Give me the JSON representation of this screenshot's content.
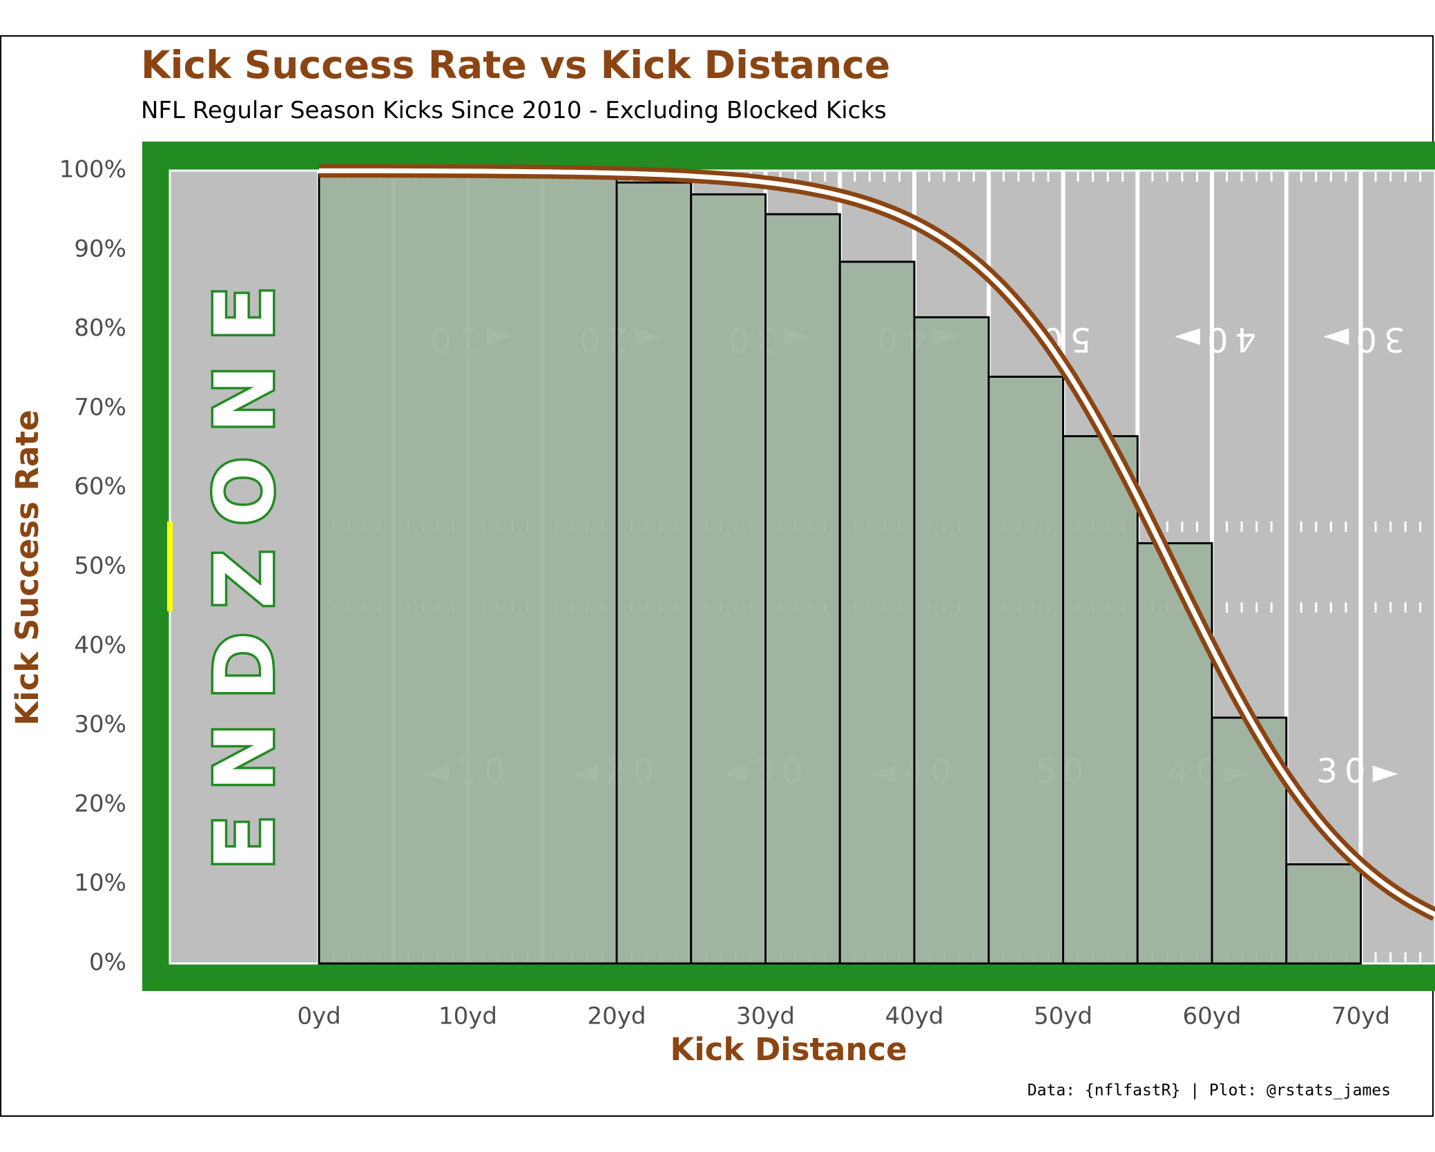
{
  "chart_data": {
    "type": "bar",
    "title": "Kick Success Rate vs Kick Distance",
    "subtitle": "NFL Regular Season Kicks Since 2010 - Excluding Blocked Kicks",
    "xlabel": "Kick Distance",
    "ylabel": "Kick Success Rate",
    "caption": "Data: {nflfastR} | Plot: @rstats_james",
    "x_ticks": [
      "0yd",
      "10yd",
      "20yd",
      "30yd",
      "40yd",
      "50yd",
      "60yd",
      "70yd"
    ],
    "x_tick_values": [
      0,
      10,
      20,
      30,
      40,
      50,
      60,
      70
    ],
    "y_ticks": [
      "0%",
      "10%",
      "20%",
      "30%",
      "40%",
      "50%",
      "60%",
      "70%",
      "80%",
      "90%",
      "100%"
    ],
    "y_tick_values": [
      0,
      0.1,
      0.2,
      0.3,
      0.4,
      0.5,
      0.6,
      0.7,
      0.8,
      0.9,
      1.0
    ],
    "xlim": [
      -10,
      75
    ],
    "ylim": [
      0,
      1
    ],
    "bins": [
      {
        "start": 0,
        "end": 20,
        "value": 0.995
      },
      {
        "start": 20,
        "end": 25,
        "value": 0.985
      },
      {
        "start": 25,
        "end": 30,
        "value": 0.97
      },
      {
        "start": 30,
        "end": 35,
        "value": 0.945
      },
      {
        "start": 35,
        "end": 40,
        "value": 0.885
      },
      {
        "start": 40,
        "end": 45,
        "value": 0.815
      },
      {
        "start": 45,
        "end": 50,
        "value": 0.74
      },
      {
        "start": 50,
        "end": 55,
        "value": 0.665
      },
      {
        "start": 55,
        "end": 60,
        "value": 0.53
      },
      {
        "start": 60,
        "end": 65,
        "value": 0.31
      },
      {
        "start": 65,
        "end": 70,
        "value": 0.125
      }
    ],
    "fit_curve": {
      "type": "logistic",
      "midpoint": 57.3,
      "scale": 6.5,
      "max": 1.0
    },
    "field": {
      "endzone_text": "ENDZONE",
      "top_numbers": [
        "◄10",
        "◄20",
        "◄30",
        "◄40",
        "50",
        "40►",
        "30►"
      ],
      "bottom_numbers": [
        "◄10",
        "◄20",
        "◄30",
        "◄40",
        "50",
        "40►",
        "30►"
      ]
    },
    "colors": {
      "title": "#8B4513",
      "border_green": "#228B22",
      "field_gray": "#BEBEBE",
      "bar_fill": "#9DB39E",
      "curve_outer": "#8B4513",
      "curve_inner": "#FFFFFF",
      "yardline_marker": "#FFFF00"
    },
    "grid": false,
    "legend": "none"
  }
}
